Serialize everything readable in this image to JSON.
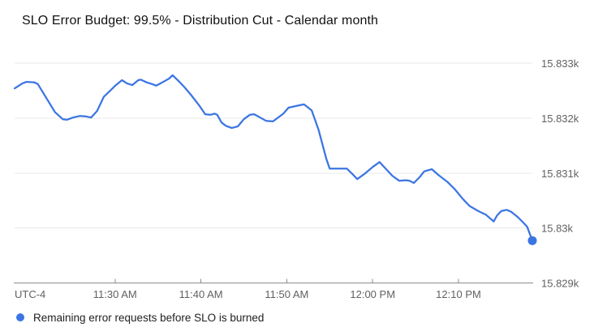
{
  "chart_data": {
    "type": "line",
    "title": "SLO Error Budget: 99.5% - Distribution Cut - Calendar month",
    "utc_label": "UTC-4",
    "t_units": "minutes from left edge of plot (~11:18 AM)",
    "x_range": [
      0,
      60.3
    ],
    "y_range": [
      15829,
      15833
    ],
    "grid": true,
    "legend_position": "bottom-left",
    "x_ticks": [
      {
        "label": "11:30 AM",
        "t": 11.7
      },
      {
        "label": "11:40 AM",
        "t": 21.7
      },
      {
        "label": "11:50 AM",
        "t": 31.7
      },
      {
        "label": "12:00 PM",
        "t": 41.7
      },
      {
        "label": "12:10 PM",
        "t": 51.7
      }
    ],
    "y_ticks": [
      {
        "label": "15.833k",
        "v": 15833
      },
      {
        "label": "15.832k",
        "v": 15832
      },
      {
        "label": "15.831k",
        "v": 15831
      },
      {
        "label": "15.83k",
        "v": 15830
      },
      {
        "label": "15.829k",
        "v": 15829
      }
    ],
    "series": [
      {
        "name": "Remaining error requests before SLO is burned",
        "color": "#3b75e3",
        "endpoint_dot": true,
        "points": [
          [
            0.0,
            15832.54
          ],
          [
            0.9,
            15832.63
          ],
          [
            1.4,
            15832.66
          ],
          [
            2.3,
            15832.65
          ],
          [
            2.7,
            15832.62
          ],
          [
            3.8,
            15832.34
          ],
          [
            4.7,
            15832.11
          ],
          [
            5.6,
            15831.98
          ],
          [
            6.1,
            15831.97
          ],
          [
            6.8,
            15832.01
          ],
          [
            7.6,
            15832.04
          ],
          [
            8.3,
            15832.03
          ],
          [
            8.9,
            15832.01
          ],
          [
            9.6,
            15832.13
          ],
          [
            10.4,
            15832.39
          ],
          [
            11.2,
            15832.51
          ],
          [
            11.8,
            15832.6
          ],
          [
            12.5,
            15832.69
          ],
          [
            13.1,
            15832.63
          ],
          [
            13.7,
            15832.6
          ],
          [
            14.4,
            15832.69
          ],
          [
            14.7,
            15832.7
          ],
          [
            15.4,
            15832.65
          ],
          [
            16.0,
            15832.62
          ],
          [
            16.5,
            15832.59
          ],
          [
            17.2,
            15832.65
          ],
          [
            18.0,
            15832.72
          ],
          [
            18.4,
            15832.78
          ],
          [
            19.2,
            15832.66
          ],
          [
            19.8,
            15832.56
          ],
          [
            20.6,
            15832.41
          ],
          [
            21.5,
            15832.23
          ],
          [
            22.2,
            15832.07
          ],
          [
            22.8,
            15832.06
          ],
          [
            23.3,
            15832.08
          ],
          [
            23.6,
            15832.06
          ],
          [
            24.1,
            15831.92
          ],
          [
            24.6,
            15831.86
          ],
          [
            25.3,
            15831.82
          ],
          [
            26.0,
            15831.85
          ],
          [
            26.7,
            15831.98
          ],
          [
            27.4,
            15832.06
          ],
          [
            27.9,
            15832.07
          ],
          [
            28.6,
            15832.01
          ],
          [
            29.3,
            15831.95
          ],
          [
            30.1,
            15831.94
          ],
          [
            30.6,
            15832.0
          ],
          [
            31.3,
            15832.08
          ],
          [
            31.9,
            15832.19
          ],
          [
            32.8,
            15832.22
          ],
          [
            33.7,
            15832.25
          ],
          [
            34.6,
            15832.14
          ],
          [
            35.4,
            15831.79
          ],
          [
            36.3,
            15831.26
          ],
          [
            36.7,
            15831.08
          ],
          [
            37.6,
            15831.08
          ],
          [
            38.7,
            15831.08
          ],
          [
            39.3,
            15830.99
          ],
          [
            39.9,
            15830.89
          ],
          [
            40.8,
            15830.99
          ],
          [
            41.7,
            15831.11
          ],
          [
            42.5,
            15831.2
          ],
          [
            43.4,
            15831.05
          ],
          [
            44.0,
            15830.95
          ],
          [
            44.8,
            15830.86
          ],
          [
            45.6,
            15830.87
          ],
          [
            46.0,
            15830.86
          ],
          [
            46.5,
            15830.82
          ],
          [
            47.2,
            15830.93
          ],
          [
            47.7,
            15831.03
          ],
          [
            48.6,
            15831.07
          ],
          [
            49.4,
            15830.96
          ],
          [
            50.4,
            15830.84
          ],
          [
            51.3,
            15830.7
          ],
          [
            52.2,
            15830.53
          ],
          [
            53.0,
            15830.4
          ],
          [
            54.0,
            15830.31
          ],
          [
            54.9,
            15830.24
          ],
          [
            55.8,
            15830.12
          ],
          [
            56.2,
            15830.23
          ],
          [
            56.7,
            15830.31
          ],
          [
            57.3,
            15830.33
          ],
          [
            57.8,
            15830.3
          ],
          [
            58.6,
            15830.2
          ],
          [
            59.3,
            15830.09
          ],
          [
            59.7,
            15830.02
          ],
          [
            60.3,
            15829.77
          ]
        ]
      }
    ]
  },
  "colors": {
    "grid": "#e8e8e8",
    "axis": "#8c8c8c",
    "tick_label": "#616161",
    "title": "#111111",
    "legend_text": "#212121",
    "background": "#ffffff"
  }
}
